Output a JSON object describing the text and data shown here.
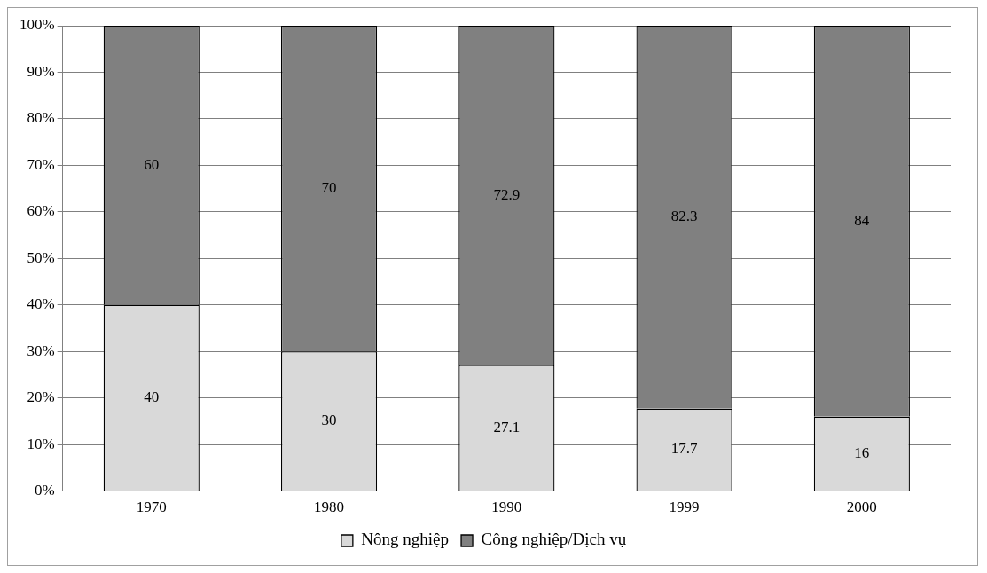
{
  "chart_data": {
    "type": "bar",
    "stacked": true,
    "categories": [
      "1970",
      "1980",
      "1990",
      "1999",
      "2000"
    ],
    "series": [
      {
        "name": "Nông nghiệp",
        "color": "#d9d9d9",
        "values": [
          40,
          30,
          27.1,
          17.7,
          16
        ]
      },
      {
        "name": "Công nghiệp/Dịch vụ",
        "color": "#808080",
        "values": [
          60,
          70,
          72.9,
          82.3,
          84
        ]
      }
    ],
    "ylim": [
      0,
      100
    ],
    "yticks": [
      {
        "value": 0,
        "label": "0%"
      },
      {
        "value": 10,
        "label": "10%"
      },
      {
        "value": 20,
        "label": "20%"
      },
      {
        "value": 30,
        "label": "30%"
      },
      {
        "value": 40,
        "label": "40%"
      },
      {
        "value": 50,
        "label": "50%"
      },
      {
        "value": 60,
        "label": "60%"
      },
      {
        "value": 70,
        "label": "70%"
      },
      {
        "value": 80,
        "label": "80%"
      },
      {
        "value": 90,
        "label": "90%"
      },
      {
        "value": 100,
        "label": "100%"
      }
    ],
    "grid": "y",
    "legend": "bottom",
    "data_labels": true
  }
}
